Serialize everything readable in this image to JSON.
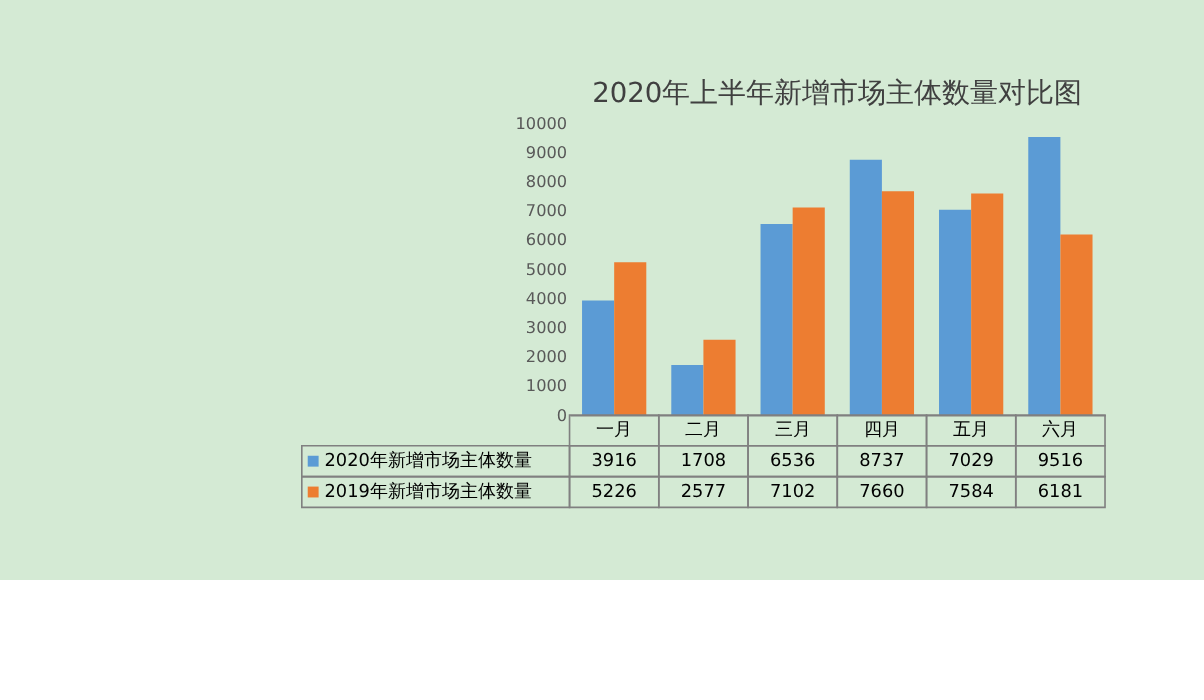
{
  "chart_data": {
    "type": "bar",
    "title": "2020年上半年新增市场主体数量对比图",
    "categories": [
      "一月",
      "二月",
      "三月",
      "四月",
      "五月",
      "六月"
    ],
    "series": [
      {
        "name": "2020年新增市场主体数量",
        "color": "#5b9bd5",
        "values": [
          3916,
          1708,
          6536,
          8737,
          7029,
          9516
        ]
      },
      {
        "name": "2019年新增市场主体数量",
        "color": "#ed7d31",
        "values": [
          5226,
          2577,
          7102,
          7660,
          7584,
          6181
        ]
      }
    ],
    "ylim": [
      0,
      10000
    ],
    "yticks": [
      0,
      1000,
      2000,
      3000,
      4000,
      5000,
      6000,
      7000,
      8000,
      9000,
      10000
    ],
    "grid": false,
    "legend": "bottom",
    "data_labels": true
  }
}
